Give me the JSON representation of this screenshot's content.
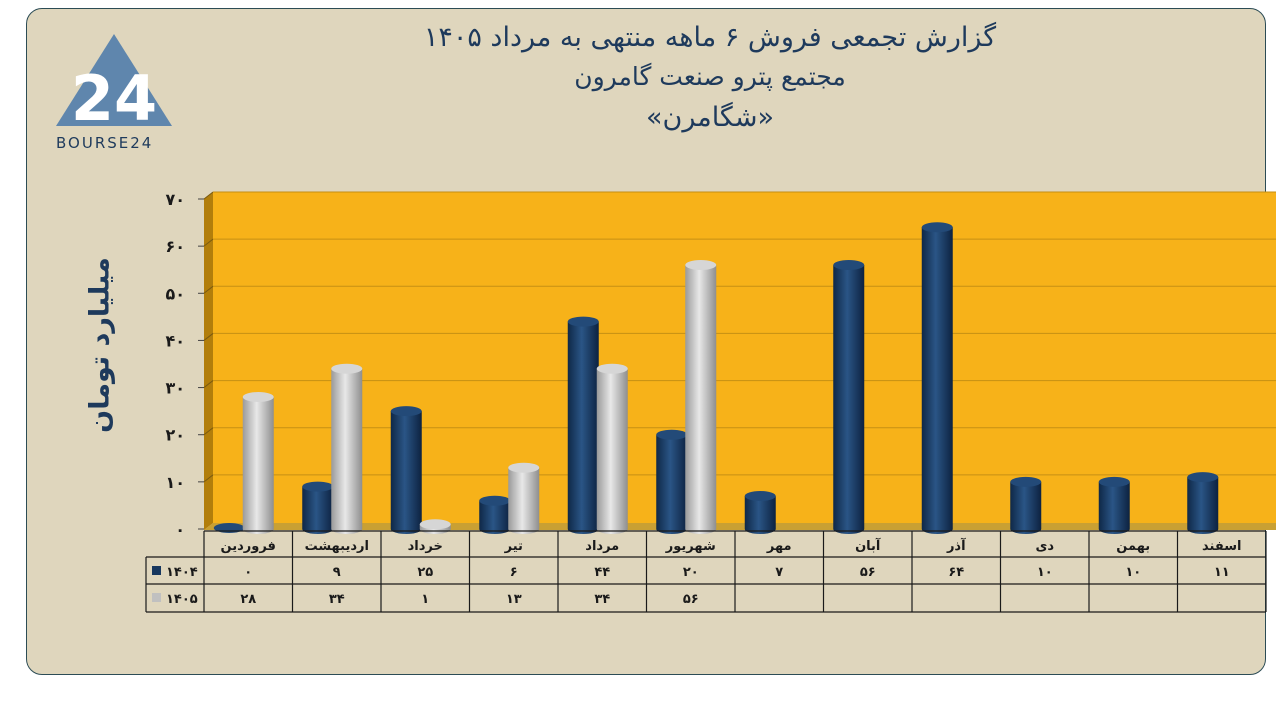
{
  "logo": {
    "text": "BOURSE24",
    "mark": "24"
  },
  "title": {
    "line1": "گزارش تجمعی فروش ۶ ماهه منتهی به مرداد ۱۴۰۵",
    "line2": "مجتمع پترو صنعت گامرون",
    "line3": "«شگامرن»"
  },
  "colors": {
    "background": "#dfd6bd",
    "plot": "#f7b219",
    "s1404": "#17375e",
    "s1405": "#c0c0c0",
    "text": "#1e3a5c"
  },
  "chart_data": {
    "type": "bar",
    "ylabel": "میلیارد تومان",
    "ylim": [
      0,
      70
    ],
    "y_ticks": [
      0,
      10,
      20,
      30,
      40,
      50,
      60,
      70
    ],
    "y_tick_labels": [
      "۰",
      "۱۰",
      "۲۰",
      "۳۰",
      "۴۰",
      "۵۰",
      "۶۰",
      "۷۰"
    ],
    "categories": [
      "فروردین",
      "اردیبهشت",
      "خرداد",
      "تیر",
      "مرداد",
      "شهریور",
      "مهر",
      "آبان",
      "آذر",
      "دی",
      "بهمن",
      "اسفند"
    ],
    "series": [
      {
        "name": "۱۴۰۴",
        "color": "#17375e",
        "values": [
          0,
          9,
          25,
          6,
          44,
          20,
          7,
          56,
          64,
          10,
          10,
          11
        ],
        "labels": [
          "۰",
          "۹",
          "۲۵",
          "۶",
          "۴۴",
          "۲۰",
          "۷",
          "۵۶",
          "۶۴",
          "۱۰",
          "۱۰",
          "۱۱"
        ]
      },
      {
        "name": "۱۴۰۵",
        "color": "#c0c0c0",
        "values": [
          28,
          34,
          1,
          13,
          34,
          56,
          null,
          null,
          null,
          null,
          null,
          null
        ],
        "labels": [
          "۲۸",
          "۳۴",
          "۱",
          "۱۳",
          "۳۴",
          "۵۶",
          "",
          "",
          "",
          "",
          "",
          ""
        ]
      }
    ],
    "grid": true,
    "legend": "data-table"
  }
}
